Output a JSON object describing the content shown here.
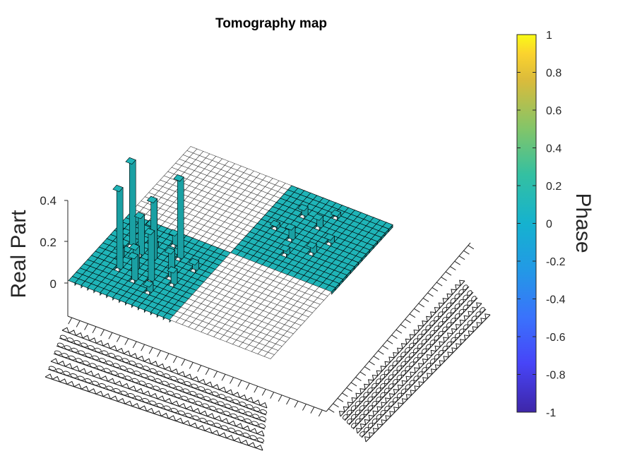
{
  "chart_data": {
    "type": "bar3d",
    "title": "Tomography map",
    "zlabel": "Real Part",
    "colorbar_label": "Phase",
    "zlim": [
      -0.15,
      0.43
    ],
    "zticks": [
      "0",
      "0.2",
      "0.4"
    ],
    "colorbar_ticks": [
      "1",
      "0.8",
      "0.6",
      "0.4",
      "0.2",
      "0",
      "-0.2",
      "-0.4",
      "-0.6",
      "-0.8",
      "-1"
    ],
    "colorbar_range": [
      -1,
      1
    ],
    "grid_size": 32,
    "block_phase": {
      "top_left": 0,
      "top_right": "nan",
      "bottom_left": "nan",
      "bottom_right": 0
    },
    "colors": {
      "phase_zero": "#1fb4b7",
      "nan_face": "#ffffff",
      "edge": "#000000"
    },
    "bars": [
      {
        "row": 4,
        "col": 5,
        "value": 0.4
      },
      {
        "row": 3,
        "col": 10,
        "value": 0.42
      },
      {
        "row": 10,
        "col": 11,
        "value": 0.4
      },
      {
        "row": 7,
        "col": 9,
        "value": 0.3
      },
      {
        "row": 5,
        "col": 9,
        "value": 0.2
      },
      {
        "row": 9,
        "col": 5,
        "value": 0.25
      },
      {
        "row": 11,
        "col": 7,
        "value": 0.14
      },
      {
        "row": 7,
        "col": 4,
        "value": 0.13
      },
      {
        "row": 6,
        "col": 6,
        "value": 0.12
      },
      {
        "row": 5,
        "col": 12,
        "value": 0.1
      },
      {
        "row": 12,
        "col": 6,
        "value": 0.08
      },
      {
        "row": 8,
        "col": 13,
        "value": 0.07
      },
      {
        "row": 3,
        "col": 7,
        "value": 0.06
      },
      {
        "row": 10,
        "col": 3,
        "value": 0.05
      },
      {
        "row": 13,
        "col": 10,
        "value": 0.05
      },
      {
        "row": 6,
        "col": 11,
        "value": 0.04
      },
      {
        "row": 21,
        "col": 22,
        "value": 0.07
      },
      {
        "row": 23,
        "col": 26,
        "value": 0.06
      },
      {
        "row": 20,
        "col": 27,
        "value": 0.05
      },
      {
        "row": 25,
        "col": 21,
        "value": 0.05
      },
      {
        "row": 22,
        "col": 19,
        "value": 0.04
      },
      {
        "row": 26,
        "col": 24,
        "value": 0.04
      },
      {
        "row": 18,
        "col": 23,
        "value": 0.03
      },
      {
        "row": 24,
        "col": 29,
        "value": 0.03
      }
    ]
  }
}
